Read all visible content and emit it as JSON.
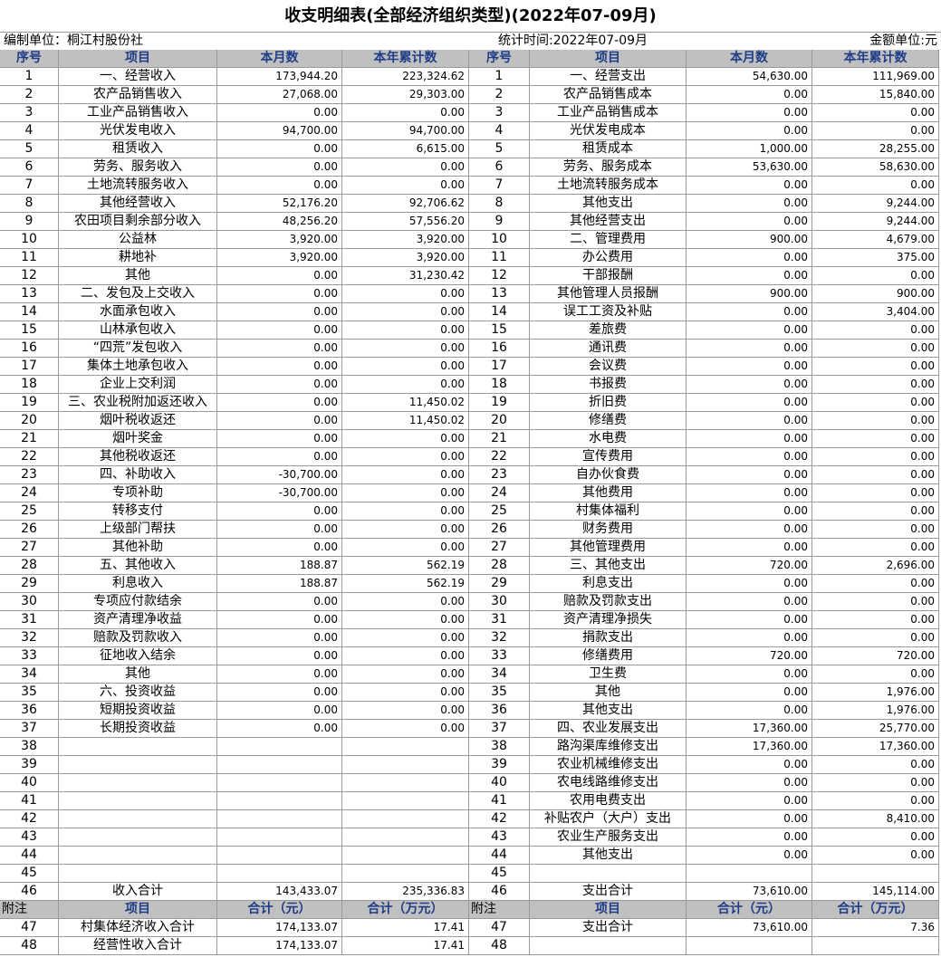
{
  "title": "收支明细表(全部经济组织类型)(2022年07-09月)",
  "info": {
    "unit": "编制单位：桐江村股份社",
    "period": "统计时间:2022年07-09月",
    "currency": "金额单位:元"
  },
  "header": [
    "序号",
    "项目",
    "本月数",
    "本年累计数",
    "序号",
    "项目",
    "本月数",
    "本年累计数"
  ],
  "rows": [
    [
      1,
      "一、经营收入",
      "173,944.20",
      "223,324.62",
      1,
      "一、经营支出",
      "54,630.00",
      "111,969.00"
    ],
    [
      2,
      "农产品销售收入",
      "27,068.00",
      "29,303.00",
      2,
      "农产品销售成本",
      "0.00",
      "15,840.00"
    ],
    [
      3,
      "工业产品销售收入",
      "0.00",
      "0.00",
      3,
      "工业产品销售成本",
      "0.00",
      "0.00"
    ],
    [
      4,
      "光伏发电收入",
      "94,700.00",
      "94,700.00",
      4,
      "光伏发电成本",
      "0.00",
      "0.00"
    ],
    [
      5,
      "租赁收入",
      "0.00",
      "6,615.00",
      5,
      "租赁成本",
      "1,000.00",
      "28,255.00"
    ],
    [
      6,
      "劳务、服务收入",
      "0.00",
      "0.00",
      6,
      "劳务、服务成本",
      "53,630.00",
      "58,630.00"
    ],
    [
      7,
      "土地流转服务收入",
      "0.00",
      "0.00",
      7,
      "土地流转服务成本",
      "0.00",
      "0.00"
    ],
    [
      8,
      "其他经营收入",
      "52,176.20",
      "92,706.62",
      8,
      "其他支出",
      "0.00",
      "9,244.00"
    ],
    [
      9,
      "农田项目剩余部分收入",
      "48,256.20",
      "57,556.20",
      9,
      "其他经营支出",
      "0.00",
      "9,244.00"
    ],
    [
      10,
      "公益林",
      "3,920.00",
      "3,920.00",
      10,
      "二、管理费用",
      "900.00",
      "4,679.00"
    ],
    [
      11,
      "耕地补",
      "3,920.00",
      "3,920.00",
      11,
      "办公费用",
      "0.00",
      "375.00"
    ],
    [
      12,
      "其他",
      "0.00",
      "31,230.42",
      12,
      "干部报酬",
      "0.00",
      "0.00"
    ],
    [
      13,
      "二、发包及上交收入",
      "0.00",
      "0.00",
      13,
      "其他管理人员报酬",
      "900.00",
      "900.00"
    ],
    [
      14,
      "水面承包收入",
      "0.00",
      "0.00",
      14,
      "误工工资及补贴",
      "0.00",
      "3,404.00"
    ],
    [
      15,
      "山林承包收入",
      "0.00",
      "0.00",
      15,
      "差旅费",
      "0.00",
      "0.00"
    ],
    [
      16,
      "“四荒”发包收入",
      "0.00",
      "0.00",
      16,
      "通讯费",
      "0.00",
      "0.00"
    ],
    [
      17,
      "集体土地承包收入",
      "0.00",
      "0.00",
      17,
      "会议费",
      "0.00",
      "0.00"
    ],
    [
      18,
      "企业上交利润",
      "0.00",
      "0.00",
      18,
      "书报费",
      "0.00",
      "0.00"
    ],
    [
      19,
      "三、农业税附加返还收入",
      "0.00",
      "11,450.02",
      19,
      "折旧费",
      "0.00",
      "0.00"
    ],
    [
      20,
      "烟叶税收返还",
      "0.00",
      "11,450.02",
      20,
      "修缮费",
      "0.00",
      "0.00"
    ],
    [
      21,
      "烟叶奖金",
      "0.00",
      "0.00",
      21,
      "水电费",
      "0.00",
      "0.00"
    ],
    [
      22,
      "其他税收返还",
      "0.00",
      "0.00",
      22,
      "宣传费用",
      "0.00",
      "0.00"
    ],
    [
      23,
      "四、补助收入",
      "-30,700.00",
      "0.00",
      23,
      "自办伙食费",
      "0.00",
      "0.00"
    ],
    [
      24,
      "专项补助",
      "-30,700.00",
      "0.00",
      24,
      "其他费用",
      "0.00",
      "0.00"
    ],
    [
      25,
      "转移支付",
      "0.00",
      "0.00",
      25,
      "村集体福利",
      "0.00",
      "0.00"
    ],
    [
      26,
      "上级部门帮扶",
      "0.00",
      "0.00",
      26,
      "财务费用",
      "0.00",
      "0.00"
    ],
    [
      27,
      "其他补助",
      "0.00",
      "0.00",
      27,
      "其他管理费用",
      "0.00",
      "0.00"
    ],
    [
      28,
      "五、其他收入",
      "188.87",
      "562.19",
      28,
      "三、其他支出",
      "720.00",
      "2,696.00"
    ],
    [
      29,
      "利息收入",
      "188.87",
      "562.19",
      29,
      "利息支出",
      "0.00",
      "0.00"
    ],
    [
      30,
      "专项应付款结余",
      "0.00",
      "0.00",
      30,
      "赔款及罚款支出",
      "0.00",
      "0.00"
    ],
    [
      31,
      "资产清理净收益",
      "0.00",
      "0.00",
      31,
      "资产清理净损失",
      "0.00",
      "0.00"
    ],
    [
      32,
      "赔款及罚款收入",
      "0.00",
      "0.00",
      32,
      "捐款支出",
      "0.00",
      "0.00"
    ],
    [
      33,
      "征地收入结余",
      "0.00",
      "0.00",
      33,
      "修缮费用",
      "720.00",
      "720.00"
    ],
    [
      34,
      "其他",
      "0.00",
      "0.00",
      34,
      "卫生费",
      "0.00",
      "0.00"
    ],
    [
      35,
      "六、投资收益",
      "0.00",
      "0.00",
      35,
      "其他",
      "0.00",
      "1,976.00"
    ],
    [
      36,
      "短期投资收益",
      "0.00",
      "0.00",
      36,
      "其他支出",
      "0.00",
      "1,976.00"
    ],
    [
      37,
      "长期投资收益",
      "0.00",
      "0.00",
      37,
      "四、农业发展支出",
      "17,360.00",
      "25,770.00"
    ],
    [
      38,
      null,
      null,
      null,
      38,
      "路沟渠库维修支出",
      "17,360.00",
      "17,360.00"
    ],
    [
      39,
      null,
      null,
      null,
      39,
      "农业机械维修支出",
      "0.00",
      "0.00"
    ],
    [
      40,
      null,
      null,
      null,
      40,
      "农电线路维修支出",
      "0.00",
      "0.00"
    ],
    [
      41,
      null,
      null,
      null,
      41,
      "农用电费支出",
      "0.00",
      "0.00"
    ],
    [
      42,
      null,
      null,
      null,
      42,
      "补贴农户（大户）支出",
      "0.00",
      "8,410.00"
    ],
    [
      43,
      null,
      null,
      null,
      43,
      "农业生产服务支出",
      "0.00",
      "0.00"
    ],
    [
      44,
      null,
      null,
      null,
      44,
      "其他支出",
      "0.00",
      "0.00"
    ],
    [
      45,
      null,
      null,
      null,
      45,
      null,
      null,
      null
    ],
    [
      46,
      "收入合计",
      "143,433.07",
      "235,336.83",
      46,
      "支出合计",
      "73,610.00",
      "145,114.00"
    ]
  ],
  "note_header": [
    "附注",
    "项目",
    "合计（元）",
    "合计（万元）",
    "附注",
    "项目",
    "合计（元）",
    "合计（万元）"
  ],
  "note_rows": [
    [
      47,
      "村集体经济收入合计",
      "174,133.07",
      "17.41",
      47,
      "支出合计",
      "73,610.00",
      "7.36"
    ],
    [
      48,
      "经营性收入合计",
      "174,133.07",
      "17.41",
      48,
      null,
      null,
      null
    ]
  ]
}
